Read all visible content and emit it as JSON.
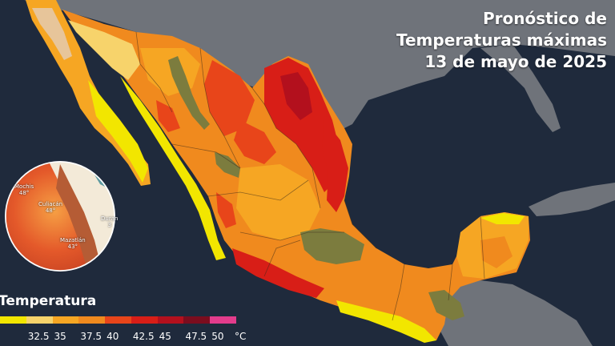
{
  "title": {
    "line1": "Pronóstico de",
    "line2": "Temperaturas máximas",
    "line3": "13 de mayo de 2025"
  },
  "legend": {
    "title": "Temperatura",
    "unit": "°C",
    "classes": [
      {
        "label": "",
        "color": "#f2e600"
      },
      {
        "label": "32.5",
        "color": "#f7d36b"
      },
      {
        "label": "35",
        "color": "#f6a623"
      },
      {
        "label": "37.5",
        "color": "#f08a1e"
      },
      {
        "label": "40",
        "color": "#e8451a"
      },
      {
        "label": "42.5",
        "color": "#d81e17"
      },
      {
        "label": "45",
        "color": "#b3101d"
      },
      {
        "label": "47.5",
        "color": "#7b0d1e"
      },
      {
        "label": "50",
        "color": "#e33c8c"
      }
    ]
  },
  "inset": {
    "labels": [
      {
        "name": "Mochis",
        "value": "48°"
      },
      {
        "name": "Culiacán",
        "value": "48°"
      },
      {
        "name": "Mazatlán",
        "value": "43°"
      },
      {
        "name": "Duran",
        "value": "3"
      }
    ]
  },
  "colors": {
    "ocean": "#1f2a3c",
    "land_gray": "#6d7178",
    "hot_red": "#d81e17",
    "orange": "#f08a1e",
    "cool_olive": "#7a7a3a"
  }
}
